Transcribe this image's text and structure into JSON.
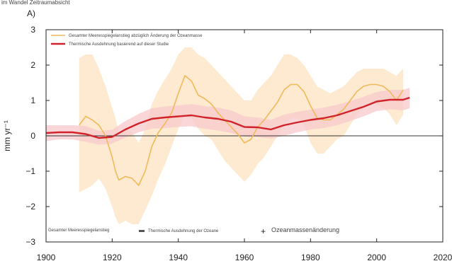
{
  "chart_data": {
    "type": "line",
    "panel_label": "A)",
    "top_caption": "im Wandel Zeitraumabsicht",
    "ylabel": "mm yr⁻¹",
    "xlim": [
      1900,
      2020
    ],
    "ylim": [
      -3,
      3
    ],
    "x_ticks": [
      1900,
      1920,
      1940,
      1960,
      1980,
      2000,
      2020
    ],
    "y_ticks": [
      -3,
      -2,
      -1,
      0,
      1,
      2,
      3
    ],
    "grid": false,
    "legend_position": "top-left",
    "zero_line": true,
    "series": [
      {
        "name": "Gesamter Meeresspiegelanstieg abzüglich Änderung der Ozeanmasse",
        "color": "#f0b95a",
        "band_color": "#fde6c8",
        "x": [
          1910,
          1912,
          1914,
          1916,
          1918,
          1920,
          1921,
          1922,
          1924,
          1926,
          1928,
          1930,
          1932,
          1934,
          1936,
          1938,
          1940,
          1942,
          1944,
          1946,
          1948,
          1950,
          1952,
          1954,
          1956,
          1958,
          1960,
          1962,
          1964,
          1966,
          1968,
          1970,
          1972,
          1974,
          1976,
          1978,
          1980,
          1982,
          1984,
          1986,
          1988,
          1990,
          1992,
          1994,
          1996,
          1998,
          2000,
          2002,
          2004,
          2006,
          2008
        ],
        "y": [
          0.3,
          0.55,
          0.45,
          0.3,
          0.0,
          -0.6,
          -1.0,
          -1.25,
          -1.15,
          -1.2,
          -1.4,
          -1.0,
          -0.3,
          0.1,
          0.35,
          0.65,
          1.2,
          1.7,
          1.55,
          1.15,
          1.05,
          0.9,
          0.65,
          0.45,
          0.25,
          0.05,
          -0.2,
          -0.1,
          0.25,
          0.45,
          0.7,
          0.95,
          1.3,
          1.45,
          1.45,
          1.25,
          0.85,
          0.5,
          0.45,
          0.45,
          0.6,
          0.75,
          1.0,
          1.25,
          1.4,
          1.45,
          1.45,
          1.4,
          1.25,
          1.0,
          1.3
        ],
        "lower": [
          -1.6,
          -1.5,
          -1.4,
          -1.2,
          -1.5,
          -2.0,
          -2.3,
          -2.5,
          -2.4,
          -2.5,
          -2.5,
          -2.1,
          -1.7,
          -1.2,
          -0.8,
          -0.3,
          0.2,
          0.6,
          0.5,
          0.2,
          0.0,
          -0.1,
          -0.4,
          -0.7,
          -0.9,
          -1.1,
          -1.3,
          -1.1,
          -0.8,
          -0.6,
          -0.3,
          0.0,
          0.3,
          0.5,
          0.5,
          0.3,
          -0.2,
          -0.5,
          -0.5,
          -0.3,
          -0.1,
          0.0,
          0.3,
          0.6,
          0.8,
          0.9,
          0.9,
          0.8,
          0.6,
          0.3,
          0.6
        ],
        "upper": [
          2.2,
          2.3,
          2.3,
          1.9,
          1.4,
          0.8,
          0.5,
          0.1,
          0.2,
          0.1,
          -0.2,
          0.2,
          0.9,
          1.3,
          1.6,
          1.9,
          2.3,
          2.5,
          2.5,
          2.3,
          2.2,
          2.0,
          1.8,
          1.6,
          1.4,
          1.2,
          1.0,
          1.0,
          1.3,
          1.5,
          1.7,
          2.0,
          2.3,
          2.3,
          2.2,
          2.0,
          1.7,
          1.4,
          1.3,
          1.2,
          1.3,
          1.4,
          1.6,
          1.8,
          1.9,
          1.9,
          1.9,
          1.9,
          1.8,
          1.7,
          1.9
        ]
      },
      {
        "name": "Thermische Ausdehnung basierend auf dieser Studie",
        "color": "#d2232a",
        "band_color": "#f7c9cc",
        "x": [
          1900,
          1904,
          1908,
          1912,
          1916,
          1920,
          1924,
          1928,
          1932,
          1936,
          1940,
          1944,
          1948,
          1952,
          1956,
          1960,
          1964,
          1968,
          1972,
          1976,
          1980,
          1984,
          1988,
          1992,
          1996,
          2000,
          2004,
          2008,
          2010
        ],
        "y": [
          0.08,
          0.1,
          0.1,
          0.05,
          -0.06,
          -0.03,
          0.18,
          0.35,
          0.48,
          0.52,
          0.55,
          0.58,
          0.52,
          0.48,
          0.4,
          0.25,
          0.24,
          0.18,
          0.3,
          0.38,
          0.45,
          0.5,
          0.58,
          0.7,
          0.82,
          0.97,
          1.02,
          1.02,
          1.08
        ],
        "lower": [
          -0.15,
          -0.1,
          -0.1,
          -0.17,
          -0.25,
          -0.22,
          -0.05,
          0.1,
          0.2,
          0.22,
          0.25,
          0.27,
          0.2,
          0.15,
          0.08,
          -0.02,
          -0.03,
          -0.08,
          0.0,
          0.1,
          0.18,
          0.22,
          0.3,
          0.42,
          0.55,
          0.7,
          0.75,
          0.72,
          0.78
        ],
        "upper": [
          0.3,
          0.3,
          0.3,
          0.28,
          0.14,
          0.17,
          0.42,
          0.62,
          0.78,
          0.83,
          0.86,
          0.9,
          0.84,
          0.8,
          0.72,
          0.55,
          0.52,
          0.45,
          0.6,
          0.68,
          0.74,
          0.8,
          0.88,
          0.98,
          1.1,
          1.24,
          1.3,
          1.3,
          1.36
        ]
      }
    ],
    "bottom_legend": {
      "gesamt": "Gesamter Meeresspiegelanstieg",
      "thermisch": "Thermische Ausdehnung der Ozeane",
      "ozeanmasse": "Ozeanmassenänderung"
    }
  }
}
